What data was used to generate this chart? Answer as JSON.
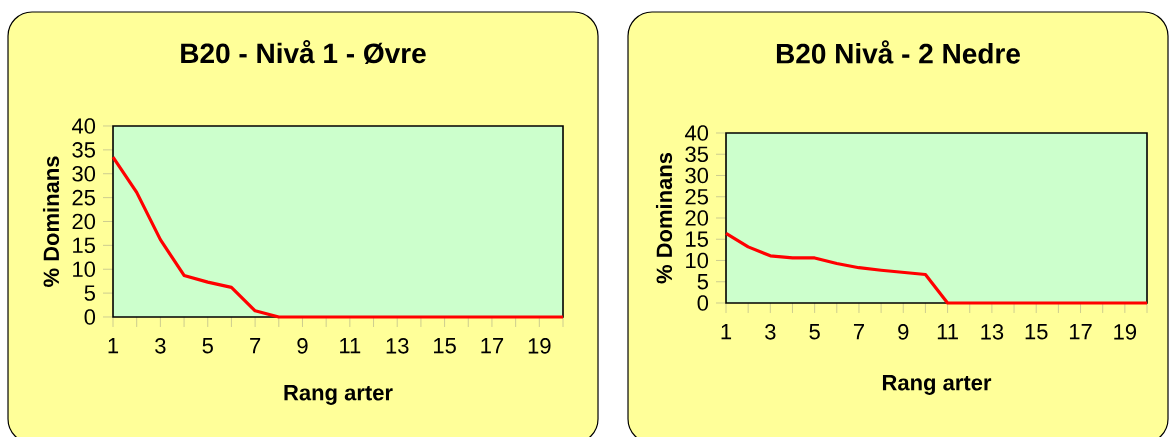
{
  "chart_data": [
    {
      "type": "line",
      "title": "B20 - Nivå 1 - Øvre",
      "xlabel": "Rang arter",
      "ylabel": "% Dominans",
      "x": [
        1,
        2,
        3,
        4,
        5,
        6,
        7,
        8,
        9,
        10,
        11,
        12,
        13,
        14,
        15,
        16,
        17,
        18,
        19,
        20
      ],
      "series": [
        {
          "color": "#ff0000",
          "values": [
            33.5,
            26.1,
            16.2,
            8.7,
            7.3,
            6.2,
            1.3,
            0,
            0,
            0,
            0,
            0,
            0,
            0,
            0,
            0,
            0,
            0,
            0,
            0
          ]
        }
      ],
      "xlim": [
        1,
        20
      ],
      "xticks": [
        1,
        {
          "value": 2,
          "label": null
        },
        3,
        {
          "value": 4,
          "label": null
        },
        5,
        {
          "value": 6,
          "label": null
        },
        7,
        {
          "value": 8,
          "label": null
        },
        9,
        {
          "value": 10,
          "label": null
        },
        11,
        {
          "value": 12,
          "label": null
        },
        13,
        {
          "value": 14,
          "label": null
        },
        15,
        {
          "value": 16,
          "label": null
        },
        17,
        {
          "value": 18,
          "label": null
        },
        19,
        {
          "value": 20,
          "label": null
        }
      ],
      "ylim": [
        0,
        40
      ],
      "yticks": [
        0,
        5,
        10,
        15,
        20,
        25,
        30,
        35,
        40
      ]
    },
    {
      "type": "line",
      "title": "B20 Nivå - 2 Nedre",
      "xlabel": "Rang arter",
      "ylabel": "% Dominans",
      "x": [
        1,
        2,
        3,
        4,
        5,
        6,
        7,
        8,
        9,
        10,
        11,
        12,
        13,
        14,
        15,
        16,
        17,
        18,
        19,
        20
      ],
      "series": [
        {
          "color": "#ff0000",
          "values": [
            16.4,
            13.2,
            11.1,
            10.6,
            10.6,
            9.3,
            8.3,
            7.7,
            7.2,
            6.7,
            0,
            0,
            0,
            0,
            0,
            0,
            0,
            0,
            0,
            0
          ]
        }
      ],
      "xlim": [
        1,
        20
      ],
      "xticks": [
        1,
        {
          "value": 2,
          "label": null
        },
        3,
        {
          "value": 4,
          "label": null
        },
        5,
        {
          "value": 6,
          "label": null
        },
        7,
        {
          "value": 8,
          "label": null
        },
        9,
        {
          "value": 10,
          "label": null
        },
        11,
        {
          "value": 12,
          "label": null
        },
        13,
        {
          "value": 14,
          "label": null
        },
        15,
        {
          "value": 16,
          "label": null
        },
        17,
        {
          "value": 18,
          "label": null
        },
        19,
        {
          "value": 20,
          "label": null
        }
      ],
      "ylim": [
        0,
        40
      ],
      "yticks": [
        0,
        5,
        10,
        15,
        20,
        25,
        30,
        35,
        40
      ]
    }
  ]
}
